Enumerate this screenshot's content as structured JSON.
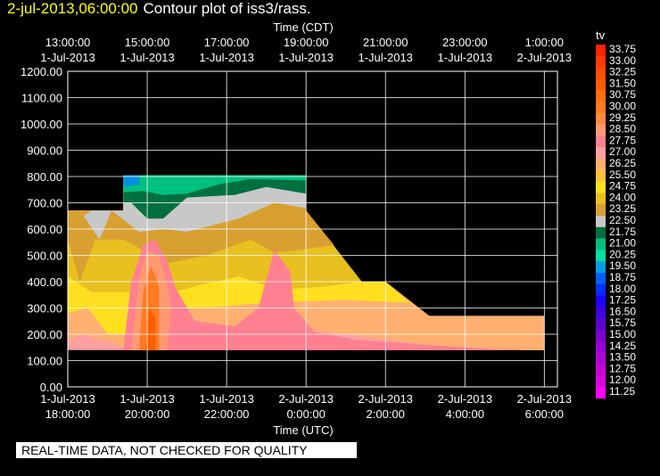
{
  "header": {
    "date": "2-jul-2013,06:00:00",
    "title": "Contour plot of iss3/rass."
  },
  "notice": "REAL-TIME DATA, NOT CHECKED FOR QUALITY",
  "colors": {
    "background": "#000000",
    "axis": "#ffffff",
    "accent": "#ffff00",
    "no_data": "#000000"
  },
  "chart_data": {
    "type": "heatmap",
    "variable": "tv",
    "top_axis": {
      "label": "Time (CDT)",
      "ticks": [
        {
          "time": "13:00:00",
          "date": "1-Jul-2013"
        },
        {
          "time": "15:00:00",
          "date": "1-Jul-2013"
        },
        {
          "time": "17:00:00",
          "date": "1-Jul-2013"
        },
        {
          "time": "19:00:00",
          "date": "1-Jul-2013"
        },
        {
          "time": "21:00:00",
          "date": "1-Jul-2013"
        },
        {
          "time": "23:00:00",
          "date": "1-Jul-2013"
        },
        {
          "time": "1:00:00",
          "date": "2-Jul-2013"
        }
      ]
    },
    "bottom_axis": {
      "label": "Time (UTC)",
      "ticks": [
        {
          "date": "1-Jul-2013",
          "time": "18:00:00"
        },
        {
          "date": "1-Jul-2013",
          "time": "20:00:00"
        },
        {
          "date": "1-Jul-2013",
          "time": "22:00:00"
        },
        {
          "date": "2-Jul-2013",
          "time": "0:00:00"
        },
        {
          "date": "2-Jul-2013",
          "time": "2:00:00"
        },
        {
          "date": "2-Jul-2013",
          "time": "4:00:00"
        },
        {
          "date": "2-Jul-2013",
          "time": "6:00:00"
        }
      ]
    },
    "xlim_utc_hours": [
      18,
      30.33
    ],
    "ylim": [
      0,
      1200
    ],
    "yticks": [
      "0.00",
      "100.00",
      "200.00",
      "300.00",
      "400.00",
      "500.00",
      "600.00",
      "700.00",
      "800.00",
      "900.00",
      "1000.00",
      "1100.00",
      "1200.00"
    ],
    "grid": true,
    "colorbar": {
      "label": "tv",
      "levels": [
        "33.75",
        "33.00",
        "32.25",
        "31.50",
        "30.75",
        "30.00",
        "29.25",
        "28.50",
        "27.75",
        "27.00",
        "26.25",
        "25.50",
        "24.75",
        "24.00",
        "23.25",
        "22.50",
        "21.75",
        "21.00",
        "20.25",
        "19.50",
        "18.75",
        "18.00",
        "17.25",
        "16.50",
        "15.75",
        "15.00",
        "14.25",
        "13.50",
        "12.75",
        "12.00",
        "11.25"
      ],
      "colors": [
        "#ff2000",
        "#ff3a00",
        "#ff4e00",
        "#ff5c00",
        "#ff6e10",
        "#ff7a20",
        "#ff8a40",
        "#ff9a70",
        "#ff8090",
        "#ffa0a0",
        "#ffb070",
        "#ffc040",
        "#ffe020",
        "#e8c020",
        "#d8a030",
        "#c8c8c8",
        "#007040",
        "#00c080",
        "#00e0a0",
        "#00a0e0",
        "#0060ff",
        "#0030ff",
        "#2000ff",
        "#4000e0",
        "#6000d0",
        "#7c00d0",
        "#9800d8",
        "#b000d8",
        "#c800d8",
        "#e000e0",
        "#ff00ff"
      ]
    },
    "data_extent": {
      "time_utc_hours": [
        18.0,
        30.0
      ],
      "height": [
        140,
        800
      ]
    }
  }
}
